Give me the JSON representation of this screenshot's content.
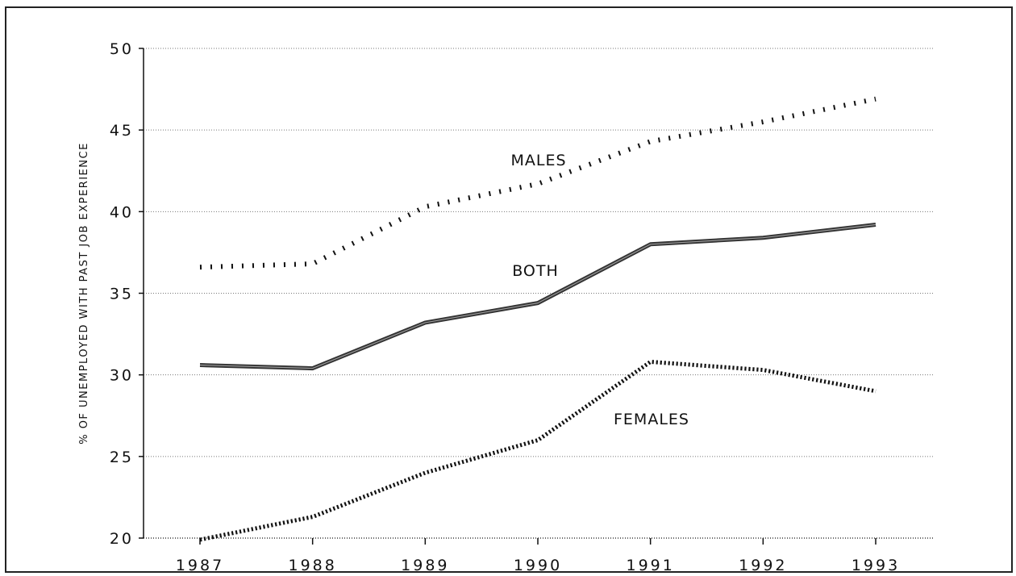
{
  "chart_data": {
    "type": "line",
    "title": "",
    "xlabel": "",
    "ylabel": "% OF UNEMPLOYED WITH PAST JOB EXPERIENCE",
    "x": [
      "1987",
      "1988",
      "1989",
      "1990",
      "1991",
      "1992",
      "1993"
    ],
    "ylim": [
      20,
      50
    ],
    "yticks": [
      20,
      25,
      30,
      35,
      40,
      45,
      50
    ],
    "grid": "horizontal-dotted",
    "series": [
      {
        "name": "MALES",
        "values": [
          36.6,
          36.8,
          40.3,
          41.7,
          44.3,
          45.5,
          46.9
        ],
        "style": "dotted-fine",
        "color": "#111111"
      },
      {
        "name": "BOTH",
        "values": [
          30.6,
          30.4,
          33.2,
          34.4,
          38.0,
          38.4,
          39.2
        ],
        "style": "solid-thick",
        "color": "#333333"
      },
      {
        "name": "FEMALES",
        "values": [
          19.9,
          21.3,
          24.0,
          26.0,
          30.8,
          30.3,
          29.0
        ],
        "style": "dotted-heavy",
        "color": "#111111"
      }
    ]
  }
}
